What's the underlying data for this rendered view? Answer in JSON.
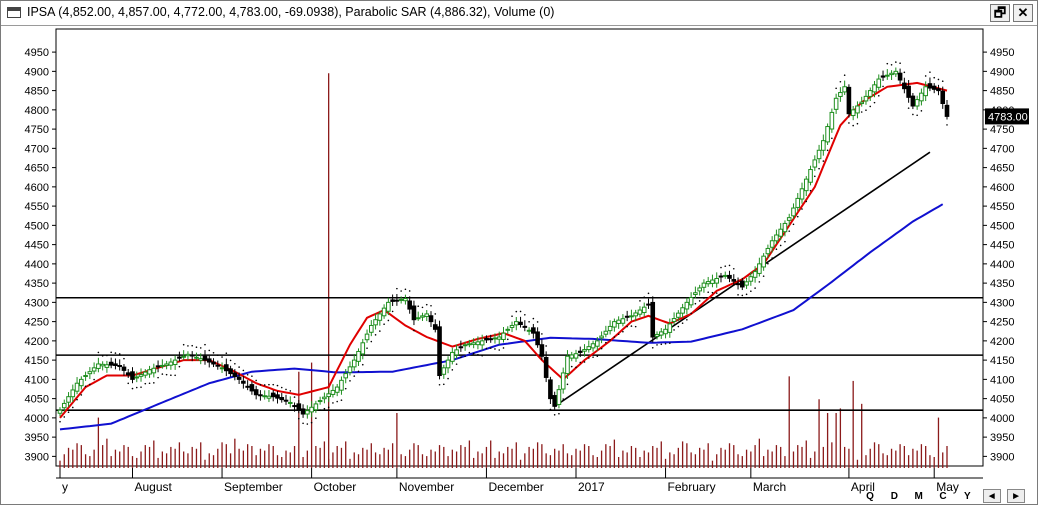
{
  "window": {
    "title": "IPSA (4,852.00, 4,857.00, 4,772.00, 4,783.00, -69.0938), Parabolic SAR (4,886.32), Volume (0)",
    "restore_label": "🗗",
    "close_label": "✕"
  },
  "nav": {
    "q": "Q",
    "d": "D",
    "m": "M",
    "c": "C",
    "y": "Y",
    "prev": "◄",
    "next": "►"
  },
  "colors": {
    "up": "#1f8f1f",
    "down": "#000000",
    "ma_short": "#e00000",
    "ma_long": "#1010d0",
    "sar": "#000000",
    "volume": "#8b1a1a",
    "hline": "#000000",
    "trend": "#000000"
  },
  "chart_data": {
    "type": "candlestick",
    "title": "IPSA",
    "last_price_label": "4783.00",
    "ylim": [
      3875,
      5010
    ],
    "y_ticks": [
      3900,
      3950,
      4000,
      4050,
      4100,
      4150,
      4200,
      4250,
      4300,
      4350,
      4400,
      4450,
      4500,
      4550,
      4600,
      4650,
      4700,
      4750,
      4800,
      4850,
      4900,
      4950
    ],
    "month_labels": [
      {
        "label": "y",
        "index": 0
      },
      {
        "label": "August",
        "index": 17
      },
      {
        "label": "September",
        "index": 38
      },
      {
        "label": "October",
        "index": 59
      },
      {
        "label": "November",
        "index": 79
      },
      {
        "label": "December",
        "index": 100
      },
      {
        "label": "2017",
        "index": 121
      },
      {
        "label": "February",
        "index": 142
      },
      {
        "label": "March",
        "index": 162
      },
      {
        "label": "April",
        "index": 185
      },
      {
        "label": "May",
        "index": 205
      }
    ],
    "horizontal_lines": [
      4020,
      4163,
      4312
    ],
    "trendline": {
      "from": {
        "index": 116,
        "value": 4030
      },
      "to": {
        "index": 204,
        "value": 4690
      }
    },
    "price_anchors": [
      [
        0,
        4020
      ],
      [
        4,
        4090
      ],
      [
        9,
        4140
      ],
      [
        14,
        4135
      ],
      [
        17,
        4100
      ],
      [
        21,
        4125
      ],
      [
        25,
        4140
      ],
      [
        30,
        4165
      ],
      [
        34,
        4150
      ],
      [
        38,
        4130
      ],
      [
        42,
        4100
      ],
      [
        46,
        4060
      ],
      [
        50,
        4055
      ],
      [
        54,
        4040
      ],
      [
        57,
        4010
      ],
      [
        61,
        4045
      ],
      [
        65,
        4080
      ],
      [
        69,
        4150
      ],
      [
        73,
        4240
      ],
      [
        77,
        4300
      ],
      [
        81,
        4310
      ],
      [
        83,
        4255
      ],
      [
        86,
        4270
      ],
      [
        88,
        4230
      ],
      [
        89,
        4110
      ],
      [
        92,
        4170
      ],
      [
        95,
        4190
      ],
      [
        99,
        4200
      ],
      [
        103,
        4210
      ],
      [
        107,
        4250
      ],
      [
        111,
        4220
      ],
      [
        113,
        4160
      ],
      [
        115,
        4050
      ],
      [
        116,
        4030
      ],
      [
        119,
        4160
      ],
      [
        122,
        4170
      ],
      [
        126,
        4200
      ],
      [
        130,
        4250
      ],
      [
        134,
        4265
      ],
      [
        138,
        4295
      ],
      [
        139,
        4210
      ],
      [
        142,
        4230
      ],
      [
        147,
        4300
      ],
      [
        151,
        4350
      ],
      [
        156,
        4370
      ],
      [
        160,
        4340
      ],
      [
        163,
        4380
      ],
      [
        167,
        4460
      ],
      [
        171,
        4520
      ],
      [
        175,
        4620
      ],
      [
        179,
        4720
      ],
      [
        182,
        4830
      ],
      [
        184,
        4860
      ],
      [
        185,
        4790
      ],
      [
        188,
        4820
      ],
      [
        192,
        4880
      ],
      [
        196,
        4900
      ],
      [
        200,
        4810
      ],
      [
        203,
        4860
      ],
      [
        206,
        4850
      ],
      [
        208,
        4783
      ]
    ],
    "ma_short_anchors": [
      [
        0,
        4000
      ],
      [
        6,
        4080
      ],
      [
        11,
        4110
      ],
      [
        17,
        4110
      ],
      [
        23,
        4130
      ],
      [
        29,
        4150
      ],
      [
        35,
        4150
      ],
      [
        41,
        4120
      ],
      [
        46,
        4090
      ],
      [
        51,
        4070
      ],
      [
        56,
        4060
      ],
      [
        63,
        4080
      ],
      [
        68,
        4190
      ],
      [
        72,
        4260
      ],
      [
        76,
        4280
      ],
      [
        81,
        4240
      ],
      [
        86,
        4210
      ],
      [
        92,
        4185
      ],
      [
        98,
        4205
      ],
      [
        104,
        4220
      ],
      [
        109,
        4200
      ],
      [
        113,
        4150
      ],
      [
        118,
        4100
      ],
      [
        123,
        4150
      ],
      [
        129,
        4200
      ],
      [
        134,
        4250
      ],
      [
        138,
        4265
      ],
      [
        143,
        4245
      ],
      [
        148,
        4270
      ],
      [
        154,
        4330
      ],
      [
        160,
        4360
      ],
      [
        165,
        4400
      ],
      [
        171,
        4500
      ],
      [
        177,
        4600
      ],
      [
        183,
        4760
      ],
      [
        188,
        4820
      ],
      [
        194,
        4860
      ],
      [
        201,
        4870
      ],
      [
        208,
        4850
      ]
    ],
    "ma_long_anchors": [
      [
        0,
        3970
      ],
      [
        12,
        3985
      ],
      [
        24,
        4040
      ],
      [
        35,
        4090
      ],
      [
        45,
        4120
      ],
      [
        55,
        4128
      ],
      [
        65,
        4118
      ],
      [
        78,
        4120
      ],
      [
        92,
        4150
      ],
      [
        103,
        4190
      ],
      [
        115,
        4208
      ],
      [
        125,
        4205
      ],
      [
        138,
        4195
      ],
      [
        148,
        4198
      ],
      [
        160,
        4230
      ],
      [
        172,
        4280
      ],
      [
        180,
        4345
      ],
      [
        190,
        4430
      ],
      [
        200,
        4510
      ],
      [
        207,
        4555
      ]
    ],
    "volume_spikes": [
      [
        9,
        55
      ],
      [
        41,
        32
      ],
      [
        56,
        105
      ],
      [
        59,
        115
      ],
      [
        79,
        60
      ],
      [
        171,
        100
      ],
      [
        178,
        75
      ],
      [
        180,
        60
      ],
      [
        182,
        60
      ],
      [
        183,
        65
      ],
      [
        186,
        95
      ],
      [
        188,
        70
      ],
      [
        206,
        55
      ]
    ],
    "volume_max": 120,
    "bar_count": 209
  }
}
